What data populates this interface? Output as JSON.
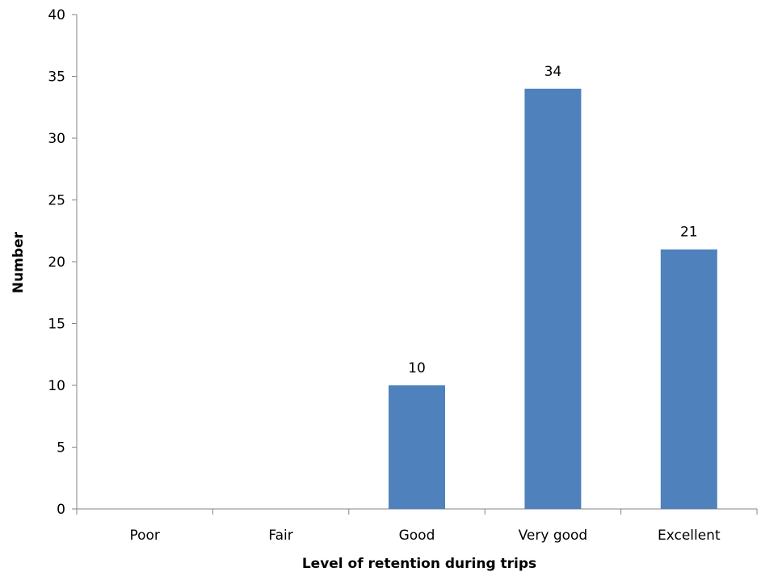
{
  "chart_data": {
    "type": "bar",
    "categories": [
      "Poor",
      "Fair",
      "Good",
      "Very good",
      "Excellent"
    ],
    "values": [
      0,
      0,
      10,
      34,
      21
    ],
    "data_labels": [
      "",
      "",
      "10",
      "34",
      "21"
    ],
    "title": "",
    "xlabel": "Level of retention during trips",
    "ylabel": "Number",
    "ylim": [
      0,
      40
    ],
    "yticks": [
      0,
      5,
      10,
      15,
      20,
      25,
      30,
      35,
      40
    ],
    "grid": false,
    "legend": "none",
    "bar_color": "#4F81BD"
  }
}
